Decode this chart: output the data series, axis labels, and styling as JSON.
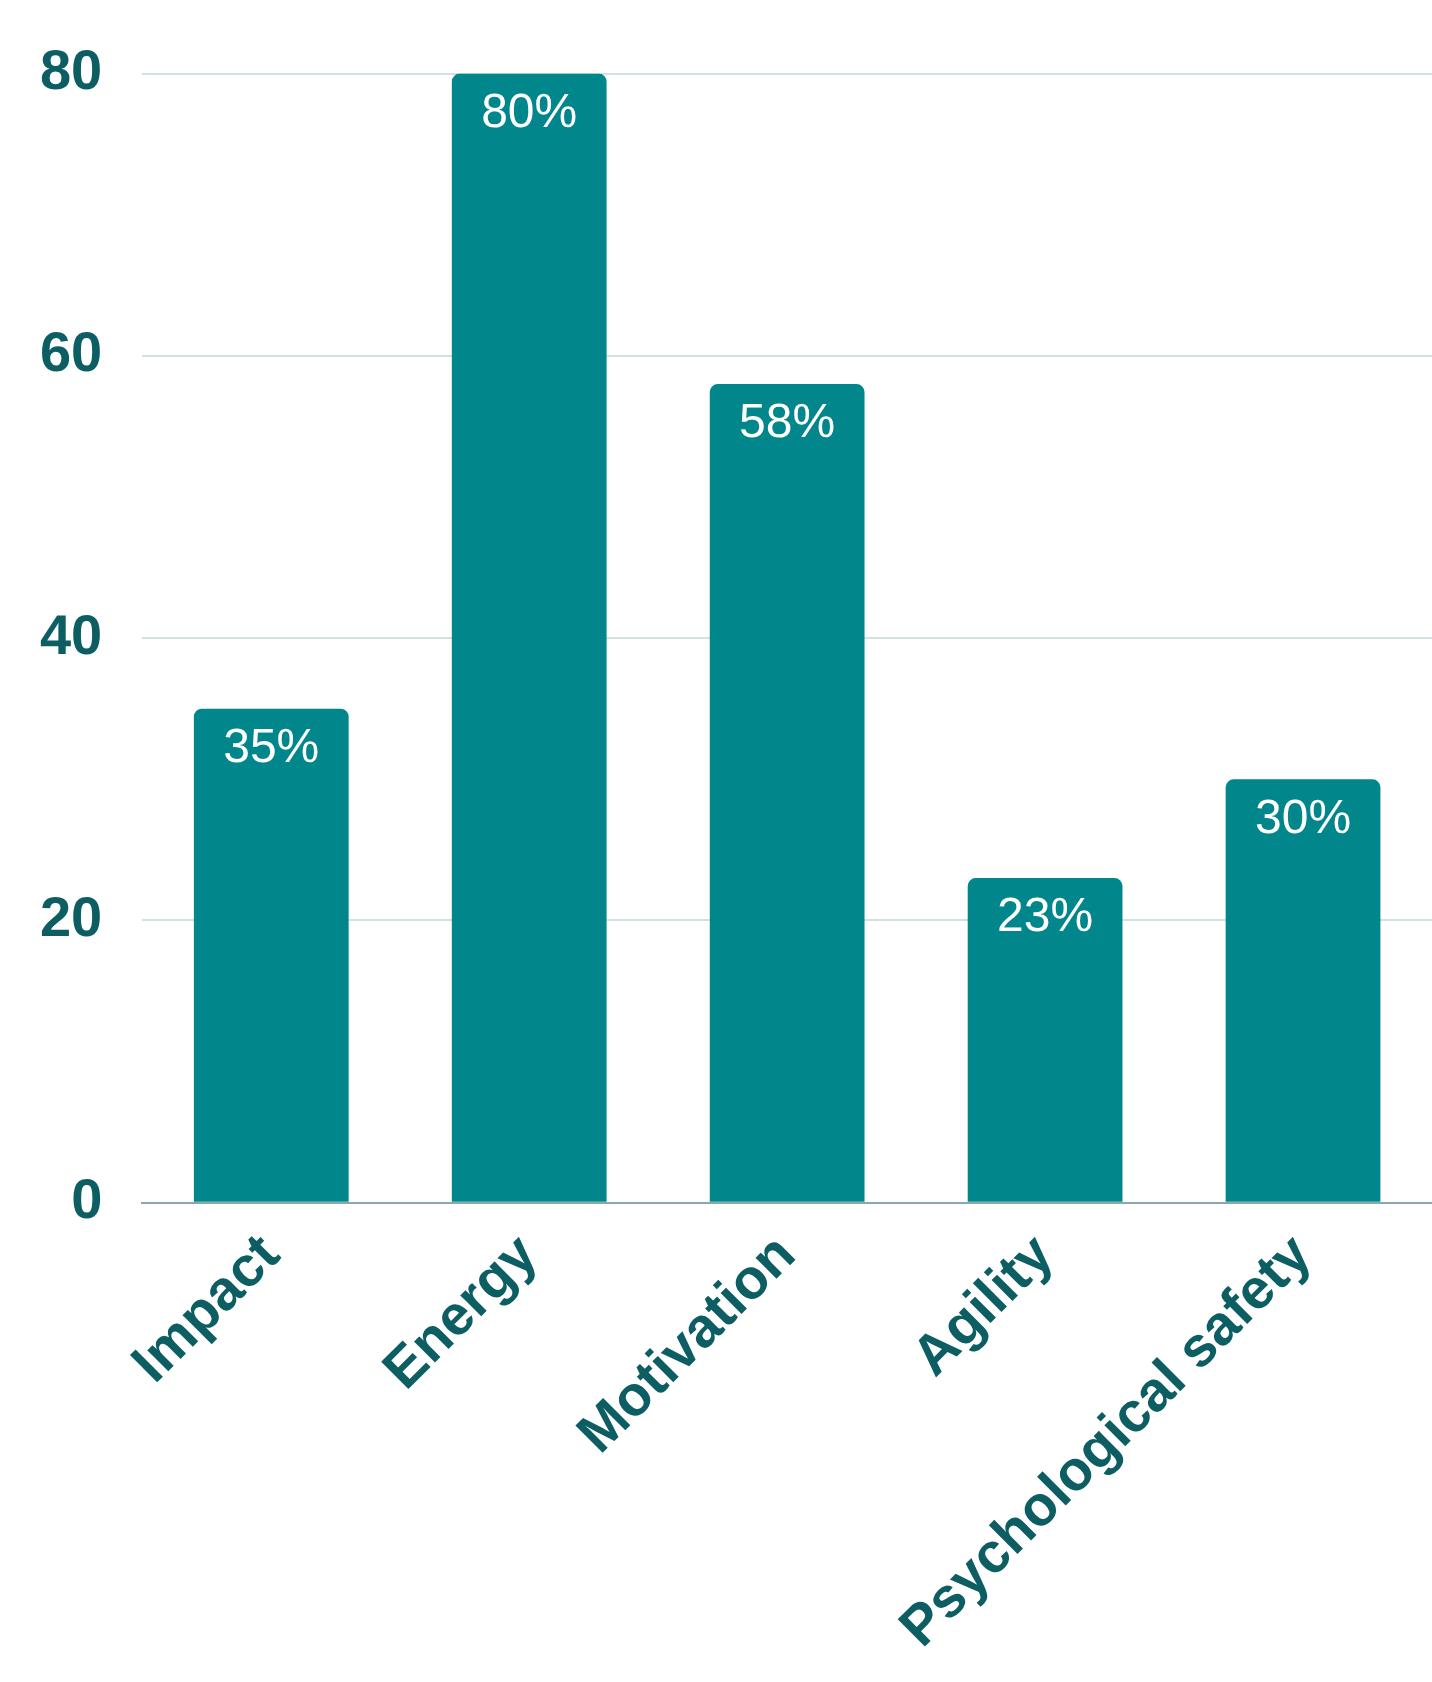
{
  "chart_data": {
    "type": "bar",
    "categories": [
      "Impact",
      "Energy",
      "Motivation",
      "Agility",
      "Psychological safety"
    ],
    "values": [
      35,
      80,
      58,
      23,
      30
    ],
    "value_labels": [
      "35%",
      "80%",
      "58%",
      "23%",
      "30%"
    ],
    "color": "#00868b",
    "ylim": [
      0,
      80
    ],
    "yticks": [
      0,
      20,
      40,
      60,
      80
    ],
    "grid": "y",
    "legend": false
  }
}
